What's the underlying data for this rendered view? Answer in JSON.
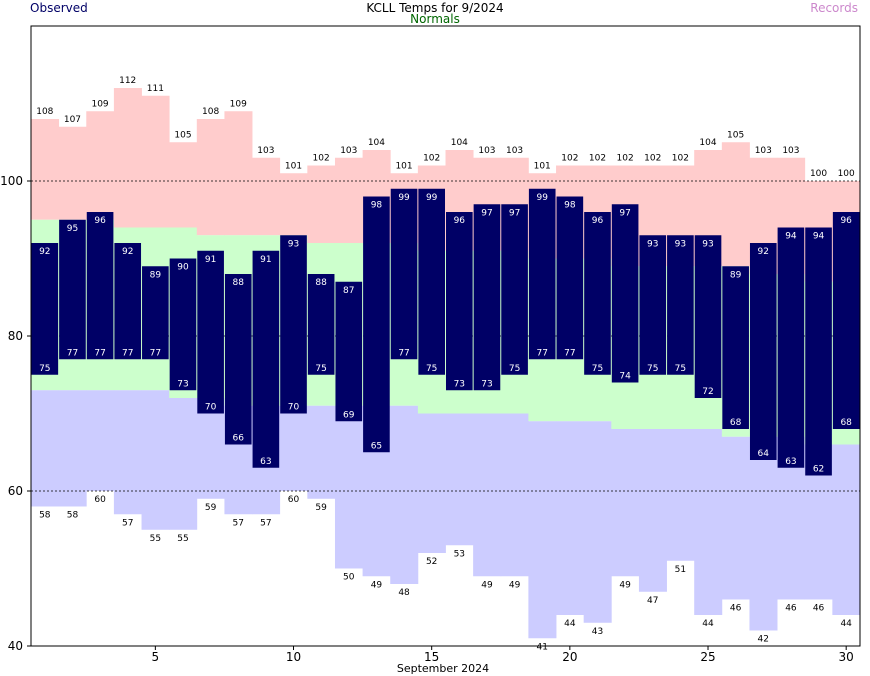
{
  "chart_data": {
    "type": "bar",
    "title": "KCLL Temps for 9/2024",
    "xlabel": "September 2024",
    "ylabel": "",
    "legend": {
      "observed": "Observed",
      "normals": "Normals",
      "records": "Records"
    },
    "ylim": [
      40,
      120
    ],
    "yticks": [
      40,
      60,
      80,
      100
    ],
    "xticks": [
      5,
      10,
      15,
      20,
      25,
      30
    ],
    "grid_lines": [
      60,
      80,
      100
    ],
    "days": [
      1,
      2,
      3,
      4,
      5,
      6,
      7,
      8,
      9,
      10,
      11,
      12,
      13,
      14,
      15,
      16,
      17,
      18,
      19,
      20,
      21,
      22,
      23,
      24,
      25,
      26,
      27,
      28,
      29,
      30
    ],
    "series": [
      {
        "name": "Observed High",
        "values": [
          92,
          95,
          96,
          92,
          89,
          90,
          91,
          88,
          91,
          93,
          88,
          87,
          98,
          99,
          99,
          96,
          97,
          97,
          99,
          98,
          96,
          97,
          93,
          93,
          93,
          89,
          92,
          94,
          94,
          96
        ]
      },
      {
        "name": "Observed Low",
        "values": [
          75,
          77,
          77,
          77,
          77,
          73,
          70,
          66,
          63,
          70,
          75,
          69,
          65,
          77,
          75,
          73,
          73,
          75,
          77,
          77,
          75,
          74,
          75,
          75,
          72,
          68,
          64,
          63,
          62,
          68
        ]
      },
      {
        "name": "Record High",
        "values": [
          108,
          107,
          109,
          112,
          111,
          105,
          108,
          109,
          103,
          101,
          102,
          103,
          104,
          101,
          102,
          104,
          103,
          103,
          101,
          102,
          102,
          102,
          102,
          102,
          104,
          105,
          103,
          103,
          100,
          100
        ]
      },
      {
        "name": "Record Low",
        "values": [
          58,
          58,
          60,
          57,
          55,
          55,
          59,
          57,
          57,
          60,
          59,
          50,
          49,
          48,
          52,
          53,
          49,
          49,
          41,
          44,
          43,
          49,
          47,
          51,
          44,
          46,
          42,
          46,
          46,
          44
        ]
      },
      {
        "name": "Normal High",
        "values": [
          95,
          95,
          95,
          94,
          94,
          94,
          93,
          93,
          93,
          93,
          92,
          92,
          92,
          92,
          91,
          91,
          91,
          91,
          90,
          90,
          90,
          89,
          89,
          89,
          89,
          89,
          88,
          88,
          87,
          87
        ]
      },
      {
        "name": "Normal Low",
        "values": [
          73,
          73,
          73,
          73,
          73,
          72,
          72,
          71,
          71,
          71,
          71,
          71,
          71,
          71,
          70,
          70,
          70,
          70,
          69,
          69,
          69,
          68,
          68,
          68,
          68,
          67,
          67,
          67,
          66,
          66
        ]
      }
    ],
    "colors": {
      "observed": "#000066",
      "normals_band": "#ccffcc",
      "record_high_band": "#ffcccc",
      "record_low_band": "#ccccff",
      "observed_text": "#000066",
      "normals_text": "#006600",
      "records_text": "#cc88cc",
      "label_on_bar": "#ffffff"
    }
  }
}
